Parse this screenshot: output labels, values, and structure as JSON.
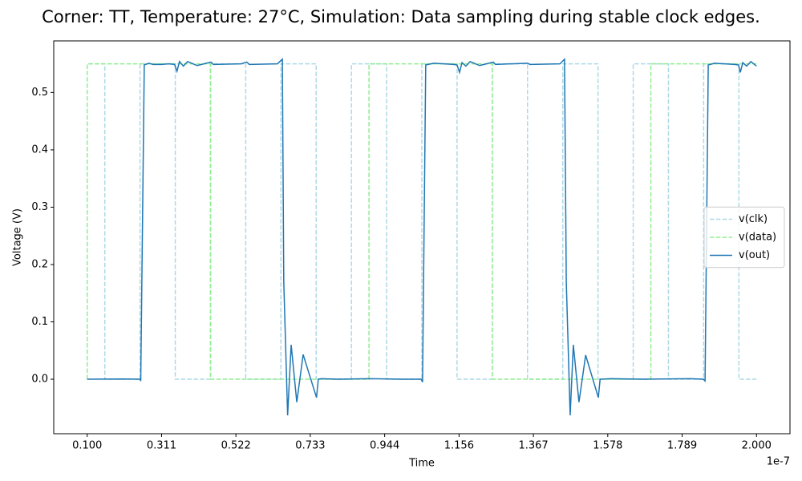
{
  "chart_data": {
    "type": "line",
    "title": "Corner: TT, Temperature: 27°C, Simulation: Data sampling during stable clock edges.",
    "xlabel": "Time",
    "ylabel": "Voltage (V)",
    "x_offset_label": "1e-7",
    "xlim": [
      0.005,
      2.095
    ],
    "ylim": [
      -0.095,
      0.59
    ],
    "xticks": [
      {
        "value": 0.1,
        "label": "0.100"
      },
      {
        "value": 0.31111,
        "label": "0.311"
      },
      {
        "value": 0.52222,
        "label": "0.522"
      },
      {
        "value": 0.73333,
        "label": "0.733"
      },
      {
        "value": 0.94444,
        "label": "0.944"
      },
      {
        "value": 1.15556,
        "label": "1.156"
      },
      {
        "value": 1.36667,
        "label": "1.367"
      },
      {
        "value": 1.57778,
        "label": "1.578"
      },
      {
        "value": 1.78889,
        "label": "1.789"
      },
      {
        "value": 2.0,
        "label": "2.000"
      }
    ],
    "yticks": [
      {
        "value": 0,
        "label": "0.0"
      },
      0.1,
      0.2,
      0.3,
      0.4,
      0.5
    ],
    "legend": "center right",
    "series": [
      {
        "name": "v(clk)",
        "color": "#add8e6",
        "linestyle": "dashed",
        "x": [
          0.1,
          0.1,
          0.15,
          0.15,
          0.25,
          0.25,
          0.35,
          0.35,
          0.45,
          0.45,
          0.55,
          0.55,
          0.65,
          0.65,
          0.75,
          0.75,
          0.85,
          0.85,
          0.95,
          0.95,
          1.05,
          1.05,
          1.15,
          1.15,
          1.25,
          1.25,
          1.35,
          1.35,
          1.45,
          1.45,
          1.55,
          1.55,
          1.65,
          1.65,
          1.75,
          1.75,
          1.85,
          1.85,
          1.95,
          1.95,
          2.0
        ],
        "values": [
          0,
          0.55,
          0.55,
          0,
          0,
          0.55,
          0.55,
          0,
          0,
          0.55,
          0.55,
          0,
          0,
          0.55,
          0.55,
          0,
          0,
          0.55,
          0.55,
          0,
          0,
          0.55,
          0.55,
          0,
          0,
          0.55,
          0.55,
          0,
          0,
          0.55,
          0.55,
          0,
          0,
          0.55,
          0.55,
          0,
          0,
          0.55,
          0.55,
          0,
          0
        ]
      },
      {
        "name": "v(data)",
        "color": "#90ee90",
        "linestyle": "dashed",
        "x": [
          0.1,
          0.1,
          0.45,
          0.45,
          0.9,
          0.9,
          1.25,
          1.25,
          1.7,
          1.7,
          2.0
        ],
        "values": [
          0,
          0.55,
          0.55,
          0,
          0,
          0.55,
          0.55,
          0,
          0,
          0.55,
          0.55
        ]
      },
      {
        "name": "v(out)",
        "color": "#1f77b4",
        "linestyle": "solid",
        "x": [
          0.1,
          0.2,
          0.25,
          0.252,
          0.262,
          0.275,
          0.287,
          0.31,
          0.332,
          0.348,
          0.355,
          0.362,
          0.373,
          0.385,
          0.412,
          0.451,
          0.458,
          0.537,
          0.553,
          0.56,
          0.64,
          0.654,
          0.658,
          0.669,
          0.679,
          0.695,
          0.713,
          0.751,
          0.756,
          0.765,
          0.811,
          0.902,
          0.993,
          1.048,
          1.052,
          1.061,
          1.084,
          1.141,
          1.15,
          1.157,
          1.164,
          1.175,
          1.187,
          1.214,
          1.253,
          1.259,
          1.35,
          1.357,
          1.442,
          1.455,
          1.46,
          1.471,
          1.48,
          1.496,
          1.515,
          1.551,
          1.556,
          1.585,
          1.676,
          1.813,
          1.849,
          1.854,
          1.863,
          1.881,
          1.938,
          1.949,
          1.954,
          1.961,
          1.972,
          1.984,
          2.0
        ],
        "values": [
          0,
          0.0005,
          0,
          -0.003,
          0.548,
          0.551,
          0.549,
          0.549,
          0.55,
          0.549,
          0.537,
          0.554,
          0.546,
          0.554,
          0.547,
          0.553,
          0.549,
          0.55,
          0.553,
          0.549,
          0.55,
          0.558,
          0.17,
          -0.063,
          0.06,
          -0.04,
          0.043,
          -0.032,
          0,
          0.001,
          0,
          0.001,
          0,
          0,
          -0.005,
          0.548,
          0.551,
          0.549,
          0.548,
          0.535,
          0.552,
          0.546,
          0.554,
          0.547,
          0.553,
          0.549,
          0.551,
          0.549,
          0.55,
          0.558,
          0.17,
          -0.063,
          0.06,
          -0.04,
          0.042,
          -0.032,
          0,
          0.001,
          0,
          0.001,
          0,
          -0.003,
          0.548,
          0.551,
          0.549,
          0.548,
          0.535,
          0.552,
          0.546,
          0.554,
          0.546
        ]
      }
    ]
  }
}
